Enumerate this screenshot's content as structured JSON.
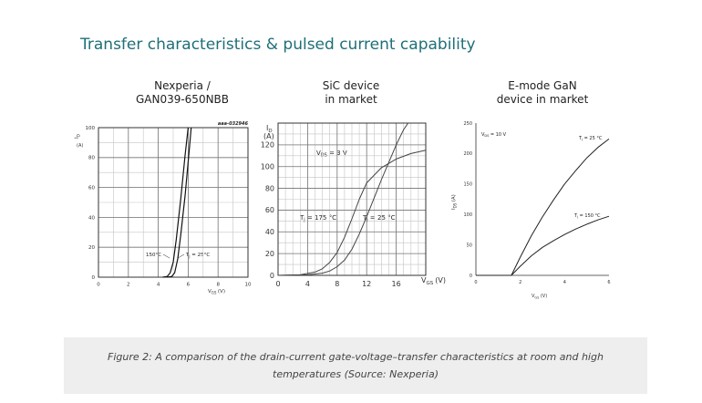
{
  "page": {
    "title": "Transfer characteristics & pulsed current capability",
    "caption_line1": "Figure 2: A comparison of the drain-current gate-voltage–transfer characteristics at room and high",
    "caption_line2": "temperatures (Source: Nexperia)"
  },
  "chart_data": [
    {
      "type": "line",
      "title_line1": "Nexperia /",
      "title_line2": "GAN039-650NBB",
      "code": "aaa-032946",
      "xlabel": "V",
      "xlabel_sub": "GS",
      "xlabel_unit": "(V)",
      "ylabel": "I",
      "ylabel_sub": "D",
      "ylabel_unit": "(A)",
      "xlim": [
        0,
        10
      ],
      "ylim": [
        0,
        100
      ],
      "x_ticks": [
        "0",
        "2",
        "4",
        "6",
        "8",
        "10"
      ],
      "y_ticks": [
        "0",
        "20",
        "40",
        "60",
        "80",
        "100"
      ],
      "x_tick_values": [
        0,
        2,
        4,
        6,
        8,
        10
      ],
      "y_tick_values": [
        0,
        20,
        40,
        60,
        80,
        100
      ],
      "grid": true,
      "series": [
        {
          "name": "150°C",
          "color": "#111111",
          "x": [
            4.3,
            4.6,
            4.8,
            5.0,
            5.2,
            5.5,
            5.8,
            6.0
          ],
          "y": [
            0,
            0.5,
            3,
            10,
            25,
            52,
            82,
            100
          ]
        },
        {
          "name": "T_j = 25°C",
          "color": "#111111",
          "x": [
            4.6,
            4.9,
            5.1,
            5.3,
            5.5,
            5.8,
            6.1,
            6.2
          ],
          "y": [
            0,
            0.5,
            3,
            12,
            28,
            55,
            88,
            100
          ]
        }
      ],
      "annotations": [
        "150°C",
        "T",
        "j",
        " = 25°C"
      ]
    },
    {
      "type": "line",
      "title_line1": "SiC device",
      "title_line2": "in market",
      "xlabel": "V",
      "xlabel_sub": "GS",
      "xlabel_unit": "(V)",
      "ylabel": "I",
      "ylabel_sub": "D",
      "ylabel_unit": "(A)",
      "xlim": [
        0,
        20
      ],
      "ylim": [
        0,
        140
      ],
      "x_ticks": [
        "0",
        "4",
        "8",
        "12",
        "16"
      ],
      "y_ticks": [
        "0",
        "20",
        "40",
        "60",
        "80",
        "100",
        "120"
      ],
      "x_tick_values": [
        0,
        4,
        8,
        12,
        16
      ],
      "y_tick_values": [
        0,
        20,
        40,
        60,
        80,
        100,
        120
      ],
      "grid": true,
      "series": [
        {
          "name": "T_j = 175 °C",
          "color": "#444444",
          "x": [
            0,
            3,
            5,
            6,
            7,
            8,
            9,
            10,
            11,
            12,
            14,
            16,
            18,
            20
          ],
          "y": [
            0,
            0.5,
            3,
            6,
            12,
            21,
            35,
            52,
            70,
            85,
            99,
            107,
            112,
            115
          ]
        },
        {
          "name": "T_j = 25 °C",
          "color": "#444444",
          "x": [
            0,
            4,
            6,
            7,
            8,
            9,
            10,
            11,
            12,
            13,
            14,
            15,
            16,
            17,
            17.6
          ],
          "y": [
            0,
            0.5,
            2,
            4,
            8,
            14,
            24,
            38,
            54,
            71,
            88,
            104,
            120,
            134,
            140
          ]
        }
      ],
      "annotations": [
        "V",
        "DS",
        " = 3 V",
        "T",
        "j",
        " = 175 °C",
        "T",
        "j",
        " = 25 °C"
      ]
    },
    {
      "type": "line",
      "title_line1": "E-mode GaN",
      "title_line2": "device in market",
      "xlabel": "V",
      "xlabel_sub": "GS",
      "xlabel_unit": "(V)",
      "ylabel": "I",
      "ylabel_sub": "DS",
      "ylabel_unit": "(A)",
      "xlim": [
        0,
        6
      ],
      "ylim": [
        0,
        250
      ],
      "x_ticks": [
        "0",
        "2",
        "4",
        "6"
      ],
      "y_ticks": [
        "0",
        "50",
        "100",
        "150",
        "200",
        "250"
      ],
      "x_tick_values": [
        0,
        2,
        4,
        6
      ],
      "y_tick_values": [
        0,
        50,
        100,
        150,
        200,
        250
      ],
      "grid": false,
      "series": [
        {
          "name": "T_j = 25 °C",
          "color": "#222222",
          "x": [
            0,
            1.6,
            2.0,
            2.5,
            3.0,
            3.5,
            4.0,
            4.5,
            5.0,
            5.5,
            6.0
          ],
          "y": [
            0,
            0,
            30,
            65,
            96,
            124,
            150,
            172,
            193,
            210,
            224
          ]
        },
        {
          "name": "T_j = 150 °C",
          "color": "#222222",
          "x": [
            0,
            1.6,
            2.0,
            2.5,
            3.0,
            3.5,
            4.0,
            4.5,
            5.0,
            5.5,
            6.0
          ],
          "y": [
            0,
            0,
            15,
            32,
            46,
            57,
            67,
            76,
            84,
            91,
            97
          ]
        }
      ],
      "annotations": [
        "V",
        "DS",
        " = 10 V",
        "T",
        "j",
        " = 25 °C",
        "T",
        "j",
        " = 150 °C"
      ]
    }
  ]
}
